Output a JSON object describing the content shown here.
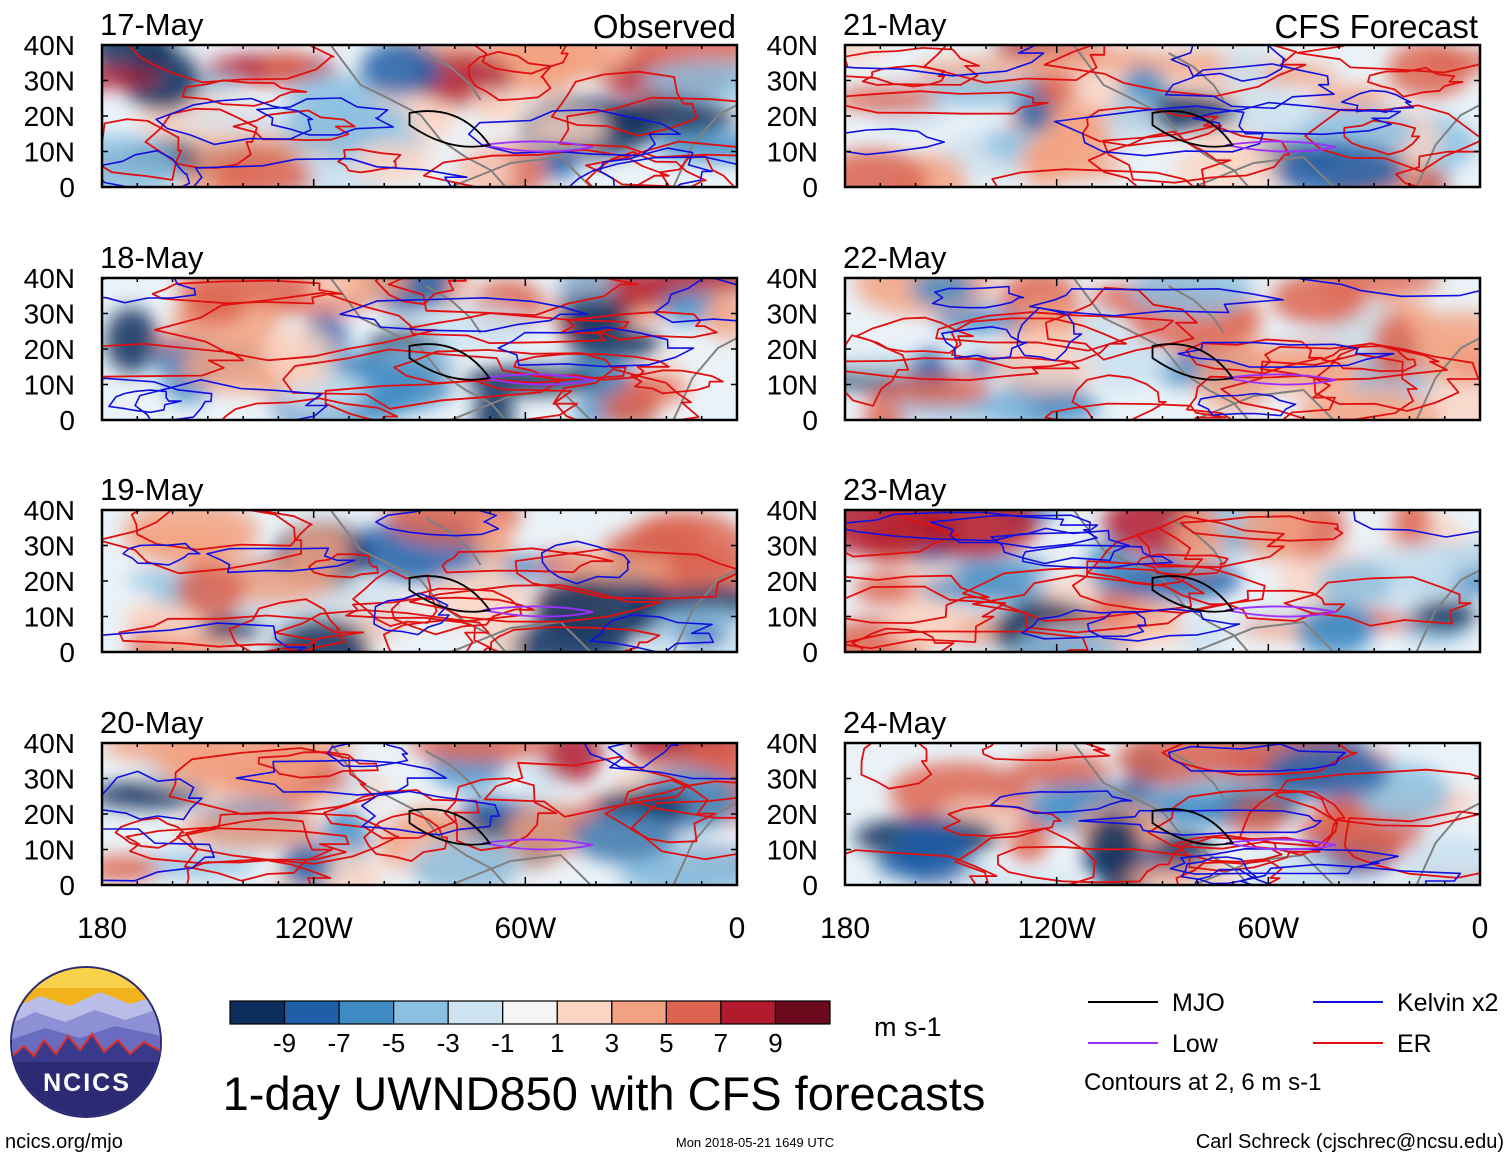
{
  "header": {
    "left_label": "Observed",
    "right_label": "CFS Forecast"
  },
  "chart_data": {
    "type": "heatmap",
    "title": "1-day UWND850 with CFS forecasts",
    "variable": "UWND850",
    "units": "m s-1",
    "x_ticks": [
      "180",
      "120W",
      "60W",
      "0"
    ],
    "y_ticks": [
      "40N",
      "30N",
      "20N",
      "10N",
      "0"
    ],
    "xlim": [
      -180,
      0
    ],
    "ylim": [
      0,
      40
    ],
    "colorbar": {
      "bin_colors": [
        "#0d2e5c",
        "#1f5fa8",
        "#3f8cc4",
        "#8cbfe0",
        "#cde3f1",
        "#f5f5f5",
        "#fbd5c3",
        "#f3a283",
        "#dd6450",
        "#b21b2d",
        "#6b0a1c"
      ],
      "tick_labels": [
        "-9",
        "-7",
        "-5",
        "-3",
        "-1",
        "1",
        "3",
        "5",
        "7",
        "9"
      ]
    },
    "panels": [
      {
        "date": "17-May",
        "kind": "Observed"
      },
      {
        "date": "18-May",
        "kind": "Observed"
      },
      {
        "date": "19-May",
        "kind": "Observed"
      },
      {
        "date": "20-May",
        "kind": "Observed"
      },
      {
        "date": "21-May",
        "kind": "CFS Forecast"
      },
      {
        "date": "22-May",
        "kind": "CFS Forecast"
      },
      {
        "date": "23-May",
        "kind": "CFS Forecast"
      },
      {
        "date": "24-May",
        "kind": "CFS Forecast"
      }
    ],
    "legend": [
      {
        "label": "MJO",
        "color": "#000000"
      },
      {
        "label": "Kelvin x2",
        "color": "#1010e0"
      },
      {
        "label": "Low",
        "color": "#9b30ff"
      },
      {
        "label": "ER",
        "color": "#e01010"
      }
    ],
    "contour_note": "Contours at 2, 6 m s-1"
  },
  "footer": {
    "logo_text": "NCICS",
    "site": "ncics.org/mjo",
    "timestamp": "Mon 2018-05-21 1649 UTC",
    "author": "Carl Schreck (cjschrec@ncsu.edu)"
  }
}
